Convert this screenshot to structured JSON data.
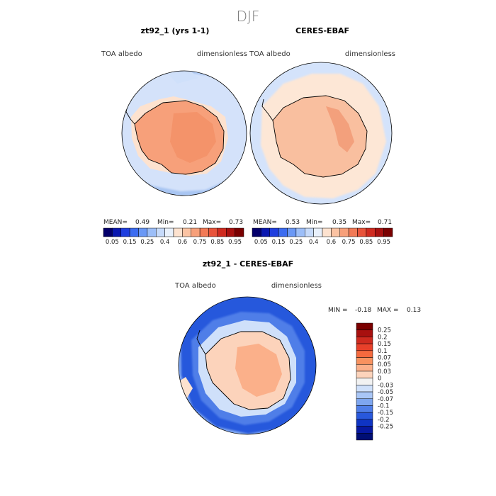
{
  "season": "DJF",
  "panels": [
    {
      "title": "zt92_1 (yrs 1-1)",
      "var_label": "TOA  albedo",
      "unit_label": "dimensionless",
      "mean_label": "MEAN=",
      "mean": "0.49",
      "min_label": "Min=",
      "min": "0.21",
      "max_label": "Max=",
      "max": "0.73"
    },
    {
      "title": "CERES-EBAF",
      "var_label": "TOA  albedo",
      "unit_label": "dimensionless",
      "mean_label": "MEAN=",
      "mean": "0.53",
      "min_label": "Min=",
      "min": "0.35",
      "max_label": "Max=",
      "max": "0.71"
    }
  ],
  "abs_colorbar": {
    "labels": [
      "0.05",
      "0.15",
      "0.25",
      "0.4",
      "0.6",
      "0.75",
      "0.85",
      "0.95"
    ],
    "colors": [
      "#04006b",
      "#0a18b0",
      "#1f3ede",
      "#3c6cf0",
      "#6a98f5",
      "#9cbef8",
      "#c6dafa",
      "#e8f0fb",
      "#fde2cf",
      "#fbc3a3",
      "#f7a07a",
      "#f27a56",
      "#e8533a",
      "#cf2a1f",
      "#a8100f",
      "#7a0000"
    ]
  },
  "diff_panel": {
    "title": "zt92_1 - CERES-EBAF",
    "var_label": "TOA  albedo",
    "unit_label": "dimensionless",
    "min_label": "MIN =",
    "min": "-0.18",
    "max_label": "MAX =",
    "max": "0.13"
  },
  "diff_colorbar": {
    "labels": [
      "0.25",
      "0.2",
      "0.15",
      "0.1",
      "0.07",
      "0.05",
      "0.03",
      "0",
      "-0.03",
      "-0.05",
      "-0.07",
      "-0.1",
      "-0.15",
      "-0.2",
      "-0.25"
    ],
    "colors": [
      "#7a0000",
      "#a8100f",
      "#cf2a1f",
      "#e8402a",
      "#f56a3e",
      "#f8925f",
      "#fbb08a",
      "#fcd3bb",
      "#f2f2f2",
      "#cfe0fa",
      "#a9c6f6",
      "#7ea6f0",
      "#4f7ee8",
      "#2858dc",
      "#0f34c4",
      "#0718a0",
      "#000e74"
    ]
  },
  "chart_data": [
    {
      "type": "heatmap",
      "title": "zt92_1 (yrs 1-1)",
      "variable": "TOA  albedo",
      "units": "dimensionless",
      "projection": "south polar stereographic",
      "mean": 0.49,
      "min": 0.21,
      "max": 0.73
    },
    {
      "type": "heatmap",
      "title": "CERES-EBAF",
      "variable": "TOA  albedo",
      "units": "dimensionless",
      "projection": "south polar stereographic",
      "mean": 0.53,
      "min": 0.35,
      "max": 0.71
    },
    {
      "type": "heatmap",
      "title": "zt92_1 - CERES-EBAF",
      "variable": "TOA  albedo",
      "units": "dimensionless",
      "projection": "south polar stereographic",
      "min": -0.18,
      "max": 0.13
    }
  ]
}
